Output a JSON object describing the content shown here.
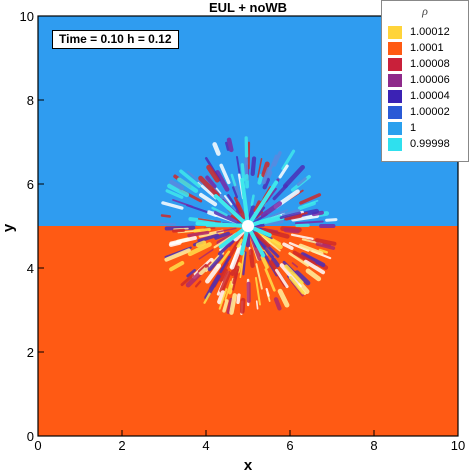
{
  "chart_data": {
    "type": "heatmap",
    "title": "EUL + noWB",
    "xlabel": "x",
    "ylabel": "y",
    "xlim": [
      0,
      10
    ],
    "ylim": [
      0,
      10
    ],
    "xticks": [
      "0",
      "2",
      "4",
      "6",
      "8",
      "10"
    ],
    "yticks": [
      "0",
      "2",
      "4",
      "6",
      "8",
      "10"
    ],
    "annotation": "Time = 0.10    h = 0.12",
    "interface_y": 5,
    "background": {
      "upper_value": 0.99998,
      "lower_value": 1.0001
    },
    "disturbance_center": [
      5,
      5
    ],
    "disturbance_radius": 2.1,
    "legend": {
      "title": "ρ",
      "placement": "top-right",
      "entries": [
        {
          "label": "1.00012",
          "color": "#ffd43a"
        },
        {
          "label": "1.0001",
          "color": "#ff5a12"
        },
        {
          "label": "1.00008",
          "color": "#c9203a"
        },
        {
          "label": "1.00006",
          "color": "#8e2a8a"
        },
        {
          "label": "1.00004",
          "color": "#3b22b4"
        },
        {
          "label": "1.00002",
          "color": "#2a5ad6"
        },
        {
          "label": "1",
          "color": "#2aa0ee"
        },
        {
          "label": "0.99998",
          "color": "#2fe0ee"
        }
      ]
    },
    "colors": {
      "upper": "#2f9cf0",
      "lower": "#ff5a14",
      "cyan": "#3fe8ec",
      "yellow": "#ffe04a",
      "purple": "#4b2fb8",
      "red": "#d02a2a"
    }
  }
}
